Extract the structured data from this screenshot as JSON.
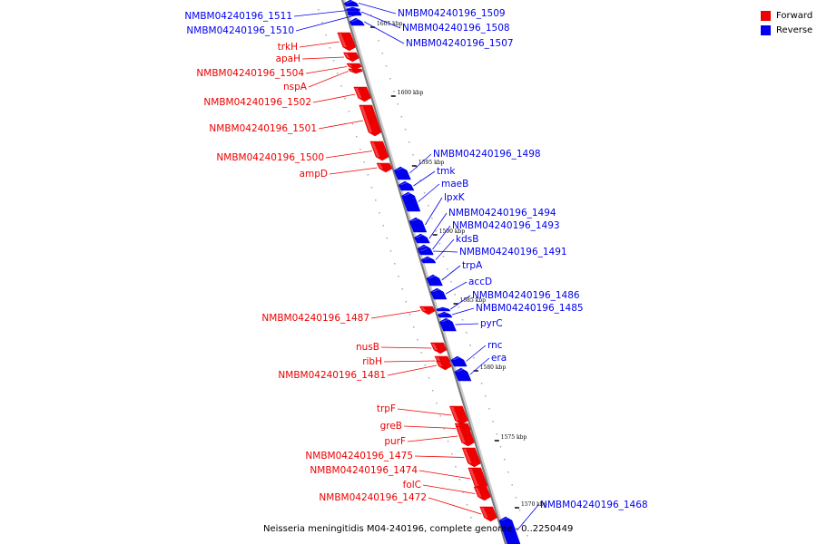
{
  "legend": {
    "forward_label": "Forward",
    "reverse_label": "Reverse",
    "forward_color": "#ee0000",
    "reverse_color": "#0000ee"
  },
  "footer": {
    "caption": "Neisseria meningitidis M04-240196, complete genome - 0..2250449"
  },
  "scale_ticks": [
    "1605 kbp",
    "1600 kbp",
    "1595 kbp",
    "1590 kbp",
    "1585 kbp",
    "1580 kbp",
    "1575 kbp",
    "1570 kbp"
  ],
  "genes": [
    {
      "label": "NMBM04240196_1511",
      "strand": "reverse"
    },
    {
      "label": "NMBM04240196_1510",
      "strand": "reverse"
    },
    {
      "label": "NMBM04240196_1509",
      "strand": "reverse"
    },
    {
      "label": "NMBM04240196_1508",
      "strand": "reverse"
    },
    {
      "label": "NMBM04240196_1507",
      "strand": "reverse"
    },
    {
      "label": "trkH",
      "strand": "forward"
    },
    {
      "label": "apaH",
      "strand": "forward"
    },
    {
      "label": "NMBM04240196_1504",
      "strand": "forward"
    },
    {
      "label": "nspA",
      "strand": "forward"
    },
    {
      "label": "NMBM04240196_1502",
      "strand": "forward"
    },
    {
      "label": "NMBM04240196_1501",
      "strand": "forward"
    },
    {
      "label": "NMBM04240196_1500",
      "strand": "forward"
    },
    {
      "label": "ampD",
      "strand": "forward"
    },
    {
      "label": "NMBM04240196_1498",
      "strand": "reverse"
    },
    {
      "label": "tmk",
      "strand": "reverse"
    },
    {
      "label": "maeB",
      "strand": "reverse"
    },
    {
      "label": "lpxK",
      "strand": "reverse"
    },
    {
      "label": "NMBM04240196_1494",
      "strand": "reverse"
    },
    {
      "label": "NMBM04240196_1493",
      "strand": "reverse"
    },
    {
      "label": "kdsB",
      "strand": "reverse"
    },
    {
      "label": "NMBM04240196_1491",
      "strand": "reverse"
    },
    {
      "label": "trpA",
      "strand": "reverse"
    },
    {
      "label": "accD",
      "strand": "reverse"
    },
    {
      "label": "NMBM04240196_1486",
      "strand": "reverse"
    },
    {
      "label": "NMBM04240196_1485",
      "strand": "reverse"
    },
    {
      "label": "pyrC",
      "strand": "reverse"
    },
    {
      "label": "NMBM04240196_1487",
      "strand": "forward"
    },
    {
      "label": "nusB",
      "strand": "forward"
    },
    {
      "label": "ribH",
      "strand": "forward"
    },
    {
      "label": "NMBM04240196_1481",
      "strand": "forward"
    },
    {
      "label": "rnc",
      "strand": "reverse"
    },
    {
      "label": "era",
      "strand": "reverse"
    },
    {
      "label": "trpF",
      "strand": "forward"
    },
    {
      "label": "greB",
      "strand": "forward"
    },
    {
      "label": "purF",
      "strand": "forward"
    },
    {
      "label": "NMBM04240196_1475",
      "strand": "forward"
    },
    {
      "label": "NMBM04240196_1474",
      "strand": "forward"
    },
    {
      "label": "folC",
      "strand": "forward"
    },
    {
      "label": "NMBM04240196_1472",
      "strand": "forward"
    },
    {
      "label": "NMBM04240196_1468",
      "strand": "reverse"
    }
  ]
}
